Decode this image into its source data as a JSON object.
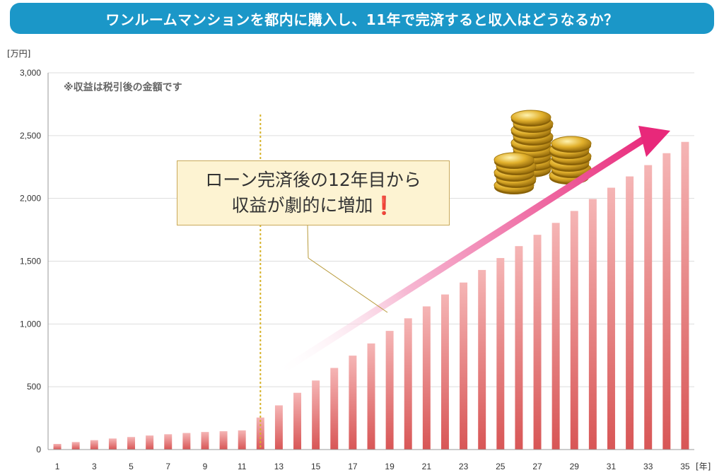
{
  "title": "ワンルームマンションを都内に購入し、11年で完済すると収入はどうなるか？",
  "callout": {
    "line1": "ローン完済後の12年目から",
    "line2": "収益が劇的に増加",
    "exclamation": "❗"
  },
  "chart_data": {
    "type": "bar",
    "note": "※収益は税引後の金額です",
    "y_unit": "[万円]",
    "x_unit": "[年]",
    "ylim": [
      0,
      3000
    ],
    "y_ticks": [
      0,
      500,
      1000,
      1500,
      2000,
      2500,
      3000
    ],
    "y_tick_labels": [
      "0",
      "500",
      "1,000",
      "1,500",
      "2,000",
      "2,500",
      "3,000"
    ],
    "x_tick_labels": [
      "1",
      "3",
      "5",
      "7",
      "9",
      "11",
      "13",
      "15",
      "17",
      "19",
      "21",
      "23",
      "25",
      "27",
      "29",
      "31",
      "33",
      "35"
    ],
    "categories": [
      "1",
      "2",
      "3",
      "4",
      "5",
      "6",
      "7",
      "8",
      "9",
      "10",
      "11",
      "12",
      "13",
      "14",
      "15",
      "16",
      "17",
      "18",
      "19",
      "20",
      "21",
      "22",
      "23",
      "24",
      "25",
      "26",
      "27",
      "28",
      "29",
      "30",
      "31",
      "32",
      "33",
      "34",
      "35"
    ],
    "values": [
      45,
      60,
      75,
      88,
      100,
      112,
      122,
      132,
      140,
      146,
      153,
      255,
      352,
      452,
      550,
      650,
      748,
      845,
      945,
      1045,
      1140,
      1235,
      1330,
      1430,
      1525,
      1620,
      1710,
      1805,
      1900,
      1995,
      2085,
      2175,
      2265,
      2360,
      2450
    ],
    "marker_year": 11.5,
    "grid": true,
    "bar_color": "#e06060",
    "arrow_color": "#e8287a"
  }
}
